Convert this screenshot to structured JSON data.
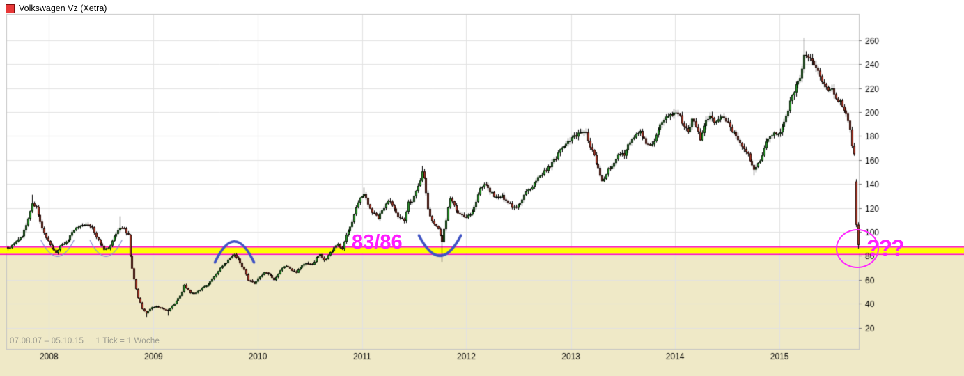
{
  "header": {
    "title": "Volkswagen Vz (Xetra)"
  },
  "footer": {
    "date_range": "07.08.07 – 05.10.15",
    "tick_info": "1 Tick = 1 Woche"
  },
  "colors": {
    "up": "#2eae2e",
    "down": "#c03c2a",
    "wick": "#000000",
    "band_yellow": "#ffff00",
    "band_edge_magenta": "#ff00bf",
    "annotation_blue": "#4053c4",
    "annotation_blue_light": "#8a93d0",
    "annotation_magenta": "#ff1cff",
    "below_zone_bg": "#efe9c7",
    "legend_swatch_red": "#e83838",
    "grid": "#e2e2e2",
    "plot_border": "#c4c4c4"
  },
  "chart_data": {
    "type": "line",
    "variant": "weekly candlestick (OHLC)",
    "title": "Volkswagen Vz (Xetra)",
    "x_start_label": "07.08.07",
    "x_end_label": "05.10.15",
    "tick_unit": "1 Woche",
    "weeks": 426,
    "grid": true,
    "y_ticks": [
      20,
      40,
      60,
      80,
      100,
      120,
      140,
      160,
      180,
      200,
      220,
      240,
      260
    ],
    "y_range": [
      10,
      272
    ],
    "x_year_ticks": [
      {
        "label": "2008",
        "week": 21
      },
      {
        "label": "2009",
        "week": 73.3
      },
      {
        "label": "2010",
        "week": 125.4
      },
      {
        "label": "2011",
        "week": 177.6
      },
      {
        "label": "2012",
        "week": 229.7
      },
      {
        "label": "2013",
        "week": 282
      },
      {
        "label": "2014",
        "week": 334.1
      },
      {
        "label": "2015",
        "week": 386.3
      }
    ],
    "support_zone": {
      "label": "83/86",
      "price_top": 86,
      "price_bottom": 83,
      "band_color": "#ffff00",
      "edge_color": "#ff00bf"
    },
    "anchors_week_close": [
      [
        0,
        86
      ],
      [
        3,
        90
      ],
      [
        7,
        97
      ],
      [
        10,
        110
      ],
      [
        12,
        124
      ],
      [
        14,
        121
      ],
      [
        16,
        108
      ],
      [
        19,
        95
      ],
      [
        22,
        87
      ],
      [
        24,
        83
      ],
      [
        26,
        88
      ],
      [
        30,
        93
      ],
      [
        33,
        102
      ],
      [
        37,
        106
      ],
      [
        39,
        107
      ],
      [
        42,
        103
      ],
      [
        45,
        93
      ],
      [
        48,
        85
      ],
      [
        51,
        88
      ],
      [
        53,
        97
      ],
      [
        56,
        104
      ],
      [
        58,
        102
      ],
      [
        60,
        97
      ],
      [
        61,
        80
      ],
      [
        63,
        60
      ],
      [
        65,
        45
      ],
      [
        67,
        36
      ],
      [
        69,
        32
      ],
      [
        71,
        36
      ],
      [
        74,
        38
      ],
      [
        77,
        36
      ],
      [
        80,
        34
      ],
      [
        82,
        38
      ],
      [
        85,
        44
      ],
      [
        87,
        50
      ],
      [
        88,
        55
      ],
      [
        91,
        49
      ],
      [
        93,
        48
      ],
      [
        96,
        52
      ],
      [
        99,
        55
      ],
      [
        103,
        62
      ],
      [
        106,
        70
      ],
      [
        110,
        76
      ],
      [
        113,
        81
      ],
      [
        115,
        77
      ],
      [
        118,
        68
      ],
      [
        120,
        60
      ],
      [
        123,
        57
      ],
      [
        126,
        63
      ],
      [
        128,
        66
      ],
      [
        131,
        64
      ],
      [
        133,
        60
      ],
      [
        136,
        68
      ],
      [
        139,
        72
      ],
      [
        141,
        69
      ],
      [
        144,
        66
      ],
      [
        147,
        72
      ],
      [
        149,
        74
      ],
      [
        152,
        72
      ],
      [
        154,
        78
      ],
      [
        156,
        82
      ],
      [
        158,
        76
      ],
      [
        160,
        80
      ],
      [
        163,
        87
      ],
      [
        165,
        90
      ],
      [
        167,
        85
      ],
      [
        169,
        97
      ],
      [
        172,
        108
      ],
      [
        174,
        120
      ],
      [
        176,
        128
      ],
      [
        178,
        132
      ],
      [
        180,
        122
      ],
      [
        182,
        116
      ],
      [
        185,
        112
      ],
      [
        188,
        120
      ],
      [
        190,
        126
      ],
      [
        192,
        122
      ],
      [
        195,
        112
      ],
      [
        198,
        110
      ],
      [
        200,
        124
      ],
      [
        202,
        126
      ],
      [
        205,
        138
      ],
      [
        207,
        150
      ],
      [
        208,
        145
      ],
      [
        210,
        118
      ],
      [
        213,
        106
      ],
      [
        215,
        102
      ],
      [
        217,
        92
      ],
      [
        220,
        120
      ],
      [
        221,
        128
      ],
      [
        224,
        118
      ],
      [
        226,
        114
      ],
      [
        229,
        112
      ],
      [
        231,
        114
      ],
      [
        234,
        126
      ],
      [
        236,
        136
      ],
      [
        239,
        140
      ],
      [
        241,
        134
      ],
      [
        244,
        128
      ],
      [
        247,
        130
      ],
      [
        250,
        124
      ],
      [
        253,
        120
      ],
      [
        255,
        122
      ],
      [
        258,
        131
      ],
      [
        261,
        136
      ],
      [
        264,
        142
      ],
      [
        266,
        147
      ],
      [
        269,
        152
      ],
      [
        272,
        157
      ],
      [
        275,
        165
      ],
      [
        278,
        172
      ],
      [
        280,
        176
      ],
      [
        283,
        180
      ],
      [
        286,
        184
      ],
      [
        289,
        183
      ],
      [
        291,
        172
      ],
      [
        294,
        158
      ],
      [
        296,
        148
      ],
      [
        297,
        142
      ],
      [
        300,
        152
      ],
      [
        303,
        158
      ],
      [
        305,
        166
      ],
      [
        308,
        164
      ],
      [
        310,
        172
      ],
      [
        313,
        180
      ],
      [
        316,
        184
      ],
      [
        319,
        174
      ],
      [
        321,
        172
      ],
      [
        324,
        180
      ],
      [
        326,
        190
      ],
      [
        329,
        196
      ],
      [
        332,
        198
      ],
      [
        335,
        200
      ],
      [
        338,
        188
      ],
      [
        340,
        182
      ],
      [
        342,
        196
      ],
      [
        344,
        188
      ],
      [
        346,
        178
      ],
      [
        349,
        192
      ],
      [
        351,
        196
      ],
      [
        353,
        192
      ],
      [
        356,
        197
      ],
      [
        358,
        196
      ],
      [
        361,
        188
      ],
      [
        363,
        182
      ],
      [
        365,
        176
      ],
      [
        368,
        170
      ],
      [
        370,
        164
      ],
      [
        373,
        153
      ],
      [
        376,
        160
      ],
      [
        378,
        170
      ],
      [
        380,
        178
      ],
      [
        383,
        184
      ],
      [
        385,
        182
      ],
      [
        387,
        186
      ],
      [
        389,
        196
      ],
      [
        391,
        208
      ],
      [
        393,
        218
      ],
      [
        396,
        228
      ],
      [
        398,
        248
      ],
      [
        400,
        246
      ],
      [
        402,
        243
      ],
      [
        404,
        237
      ],
      [
        406,
        228
      ],
      [
        408,
        222
      ],
      [
        410,
        218
      ],
      [
        412,
        219
      ],
      [
        414,
        212
      ],
      [
        417,
        206
      ],
      [
        419,
        198
      ],
      [
        421,
        186
      ],
      [
        422,
        172
      ],
      [
        423,
        164
      ],
      [
        424,
        106
      ],
      [
        425,
        89
      ]
    ],
    "ohlc_overrides": [
      {
        "week": 12,
        "high": 131
      },
      {
        "week": 56,
        "high": 113
      },
      {
        "week": 69,
        "low": 29
      },
      {
        "week": 80,
        "low": 30
      },
      {
        "week": 178,
        "high": 137
      },
      {
        "week": 207,
        "high": 155
      },
      {
        "week": 217,
        "low": 75
      },
      {
        "week": 373,
        "low": 147
      },
      {
        "week": 398,
        "high": 262
      },
      {
        "week": 424,
        "open": 142,
        "high": 144,
        "low": 104,
        "close": 106
      },
      {
        "week": 425,
        "open": 106,
        "high": 108,
        "low": 86,
        "close": 89
      }
    ],
    "annotations": {
      "support_label": {
        "text": "83/86",
        "color": "#ff1cff"
      },
      "question_label": {
        "text": "???",
        "color": "#ff1cff"
      },
      "ellipse": {
        "week": 425,
        "price": 86
      },
      "curves": [
        {
          "id": "u-early-2008",
          "style": "thin",
          "shape": "u",
          "week_start": 17,
          "week_end": 33.5,
          "price_edge": 93,
          "price_apex": 79.5
        },
        {
          "id": "u-mid-2008",
          "style": "thin",
          "shape": "u",
          "week_start": 41.5,
          "week_end": 57.5,
          "price_edge": 93,
          "price_apex": 79.5
        },
        {
          "id": "arch-2009",
          "style": "thick",
          "shape": "arch",
          "week_start": 104,
          "week_end": 123.5,
          "price_edge": 74.5,
          "price_apex": 92
        },
        {
          "id": "u-2011",
          "style": "thick",
          "shape": "u",
          "week_start": 206,
          "week_end": 227,
          "price_edge": 97,
          "price_apex": 80
        }
      ]
    }
  }
}
